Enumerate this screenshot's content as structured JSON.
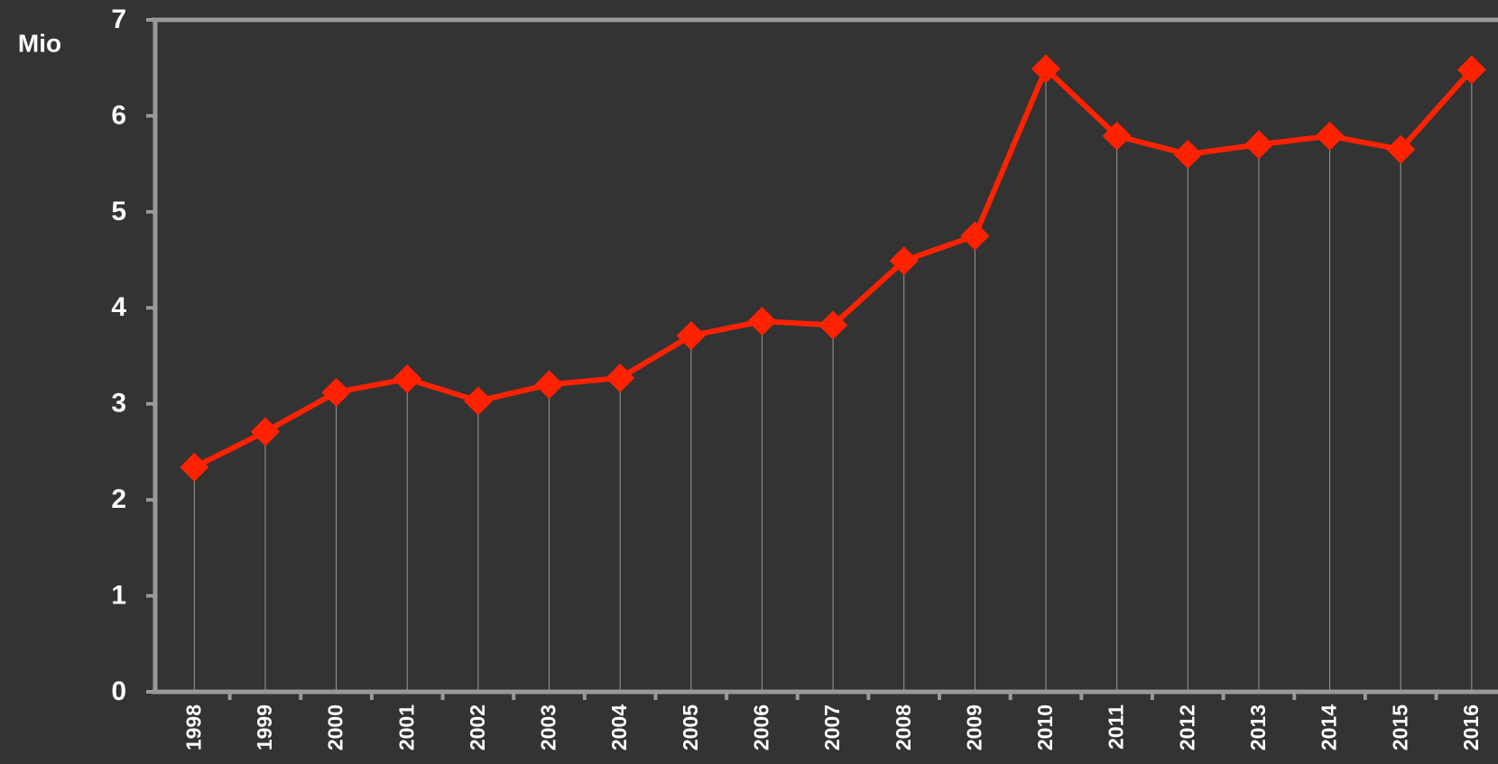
{
  "chart_data": {
    "type": "line",
    "y_label": "Mio",
    "categories": [
      "1998",
      "1999",
      "2000",
      "2001",
      "2002",
      "2003",
      "2004",
      "2005",
      "2006",
      "2007",
      "2008",
      "2009",
      "2010",
      "2011",
      "2012",
      "2013",
      "2014",
      "2015",
      "2016"
    ],
    "series": [
      {
        "color": "#ff2200",
        "values": [
          2.34,
          2.71,
          3.12,
          3.26,
          3.03,
          3.2,
          3.27,
          3.71,
          3.86,
          3.82,
          4.49,
          4.75,
          6.49,
          5.79,
          5.6,
          5.7,
          5.79,
          5.65,
          6.48
        ]
      }
    ],
    "ylim": [
      0,
      7
    ],
    "yticks": [
      0,
      1,
      2,
      3,
      4,
      5,
      6,
      7
    ],
    "drop_lines": true
  }
}
